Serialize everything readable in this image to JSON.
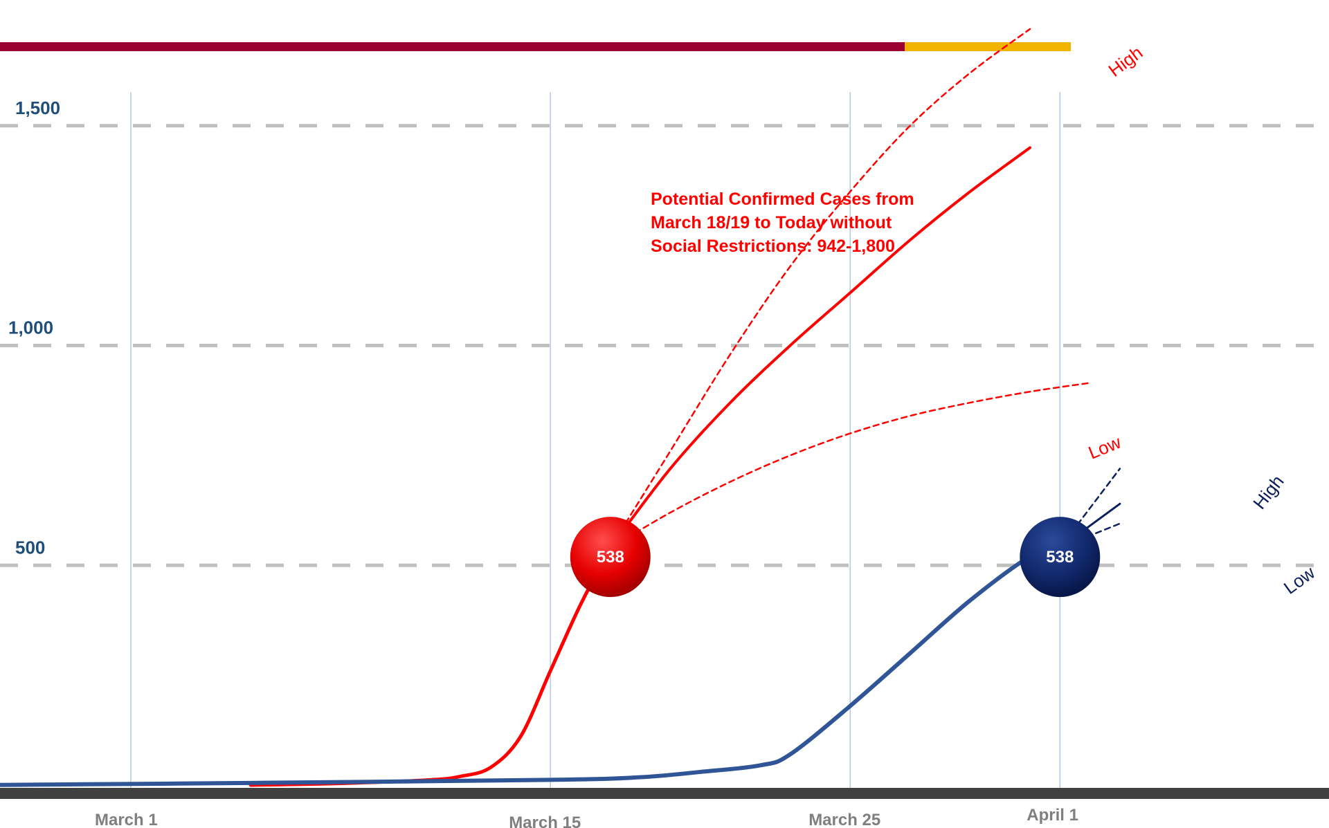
{
  "colors": {
    "title_bar_primary": "#9b0033",
    "title_bar_accent": "#f0b400",
    "gridline": "#bfbfbf",
    "vertical_gridline": "#b4c7e7",
    "baseline": "#404040",
    "red_series": "#ff0000",
    "blue_series": "#2f5597",
    "blue_dark": "#0b1f5c"
  },
  "chart_data": {
    "type": "line",
    "title": "",
    "xlabel": "",
    "ylabel": "",
    "x_axis": {
      "type": "date",
      "tick_labels": [
        "March 1",
        "March 15",
        "March 25",
        "April 1"
      ],
      "tick_dates": [
        "2020-03-01",
        "2020-03-15",
        "2020-03-25",
        "2020-04-01"
      ],
      "range": [
        "2020-02-25",
        "2020-04-03"
      ]
    },
    "y_axis": {
      "tick_labels": [
        "500",
        "1,000",
        "1,500"
      ],
      "tick_values": [
        500,
        1000,
        1500
      ],
      "range": [
        0,
        1600
      ],
      "grid": "dashed horizontal"
    },
    "series": [
      {
        "style": "solid-red",
        "points": [
          [
            "2020-03-05",
            0
          ],
          [
            "2020-03-08",
            4
          ],
          [
            "2020-03-11",
            12
          ],
          [
            "2020-03-12",
            20
          ],
          [
            "2020-03-13",
            40
          ],
          [
            "2020-03-14",
            110
          ],
          [
            "2020-03-15",
            260
          ],
          [
            "2020-03-16",
            410
          ],
          [
            "2020-03-17",
            540
          ]
        ]
      },
      {
        "style": "projection-red-solid",
        "points": [
          [
            "2020-03-17",
            540
          ],
          [
            "2020-03-19",
            720
          ],
          [
            "2020-03-21",
            870
          ],
          [
            "2020-03-23",
            1000
          ],
          [
            "2020-03-25",
            1120
          ],
          [
            "2020-03-27",
            1240
          ],
          [
            "2020-03-29",
            1350
          ],
          [
            "2020-03-31",
            1450
          ]
        ]
      },
      {
        "style": "projection-red-high-dashed",
        "points": [
          [
            "2020-03-17",
            540
          ],
          [
            "2020-03-19",
            760
          ],
          [
            "2020-03-21",
            980
          ],
          [
            "2020-03-23",
            1180
          ],
          [
            "2020-03-25",
            1350
          ],
          [
            "2020-03-27",
            1500
          ],
          [
            "2020-03-29",
            1620
          ],
          [
            "2020-03-31",
            1720
          ]
        ]
      },
      {
        "style": "projection-red-low-dashed",
        "points": [
          [
            "2020-03-17",
            540
          ],
          [
            "2020-03-19",
            620
          ],
          [
            "2020-03-21",
            690
          ],
          [
            "2020-03-23",
            750
          ],
          [
            "2020-03-25",
            800
          ],
          [
            "2020-03-27",
            840
          ],
          [
            "2020-03-29",
            870
          ],
          [
            "2020-03-31",
            895
          ],
          [
            "2020-04-02",
            915
          ]
        ]
      },
      {
        "style": "solid-blue",
        "points": [
          [
            "2020-02-25",
            0
          ],
          [
            "2020-03-05",
            5
          ],
          [
            "2020-03-15",
            12
          ],
          [
            "2020-03-18",
            18
          ],
          [
            "2020-03-20",
            30
          ],
          [
            "2020-03-22",
            45
          ],
          [
            "2020-03-23",
            70
          ],
          [
            "2020-03-25",
            180
          ],
          [
            "2020-03-27",
            300
          ],
          [
            "2020-03-29",
            420
          ],
          [
            "2020-03-31",
            520
          ],
          [
            "2020-04-01",
            540
          ]
        ]
      },
      {
        "style": "projection-blue-solid",
        "points": [
          [
            "2020-04-01",
            540
          ],
          [
            "2020-04-03",
            640
          ]
        ]
      },
      {
        "style": "projection-blue-high-dashed",
        "points": [
          [
            "2020-04-01",
            540
          ],
          [
            "2020-04-03",
            720
          ]
        ]
      },
      {
        "style": "projection-blue-low-dashed",
        "points": [
          [
            "2020-04-01",
            540
          ],
          [
            "2020-04-03",
            595
          ]
        ]
      }
    ],
    "markers": [
      {
        "date": "2020-03-17",
        "value": 538,
        "label": "538",
        "color": "red"
      },
      {
        "date": "2020-04-01",
        "value": 538,
        "label": "538",
        "color": "blue"
      }
    ],
    "annotations": {
      "note_lines": [
        "Potential Confirmed Cases from",
        "March 18/19 to Today without",
        "Social Restrictions: 942-1,800"
      ],
      "red_high": "High",
      "red_low": "Low",
      "blue_high": "High",
      "blue_low": "Low"
    }
  }
}
